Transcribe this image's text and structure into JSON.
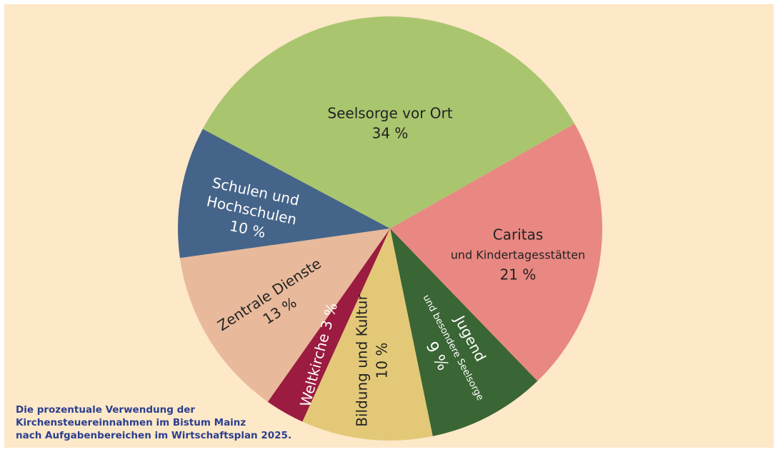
{
  "chart_data": {
    "type": "pie",
    "title": [
      "Die prozentuale Verwendung der",
      "Kirchensteuereinnahmen im Bistum Mainz",
      "nach Aufgabenbereichen im Wirtschaftsplan 2025."
    ],
    "categories": [
      [
        "Seelsorge vor Ort"
      ],
      [
        "Caritas",
        "und Kindertagesstätten"
      ],
      [
        "Jugend",
        "und besondere Seelsorge"
      ],
      [
        "Bildung und Kultur"
      ],
      [
        "Weltkirche"
      ],
      [
        "Zentrale Dienste"
      ],
      [
        "Schulen und",
        "Hochschulen"
      ]
    ],
    "values": [
      34,
      21,
      9,
      10,
      3,
      13,
      10
    ],
    "value_labels": [
      "34 %",
      "21 %",
      "9 %",
      "10 %",
      "3 %",
      "13 %",
      "10 %"
    ],
    "colors": [
      "#a9c66f",
      "#e98882",
      "#3a6535",
      "#e3c977",
      "#9b1c40",
      "#e8b99b",
      "#456489"
    ]
  }
}
